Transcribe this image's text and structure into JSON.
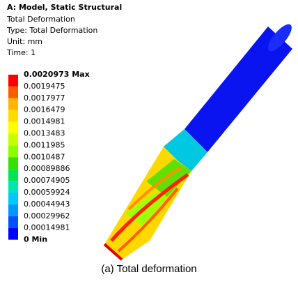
{
  "header": {
    "title": "A: Model, Static Structural",
    "lines": [
      "Total Deformation",
      "Type: Total Deformation",
      "Unit: mm",
      "Time: 1"
    ]
  },
  "legend": {
    "labels": [
      "0.0020973 Max",
      "0.0019475",
      "0.0017977",
      "0.0016479",
      "0.0014981",
      "0.0013483",
      "0.0011985",
      "0.0010487",
      "0.00089886",
      "0.00074905",
      "0.00059924",
      "0.00044943",
      "0.00029962",
      "0.00014981",
      "0 Min"
    ],
    "colors": [
      "#ff0000",
      "#ff5a00",
      "#ffb400",
      "#ffdc00",
      "#ffff00",
      "#c8ff00",
      "#8cff00",
      "#38e000",
      "#00e650",
      "#00e6b4",
      "#00c8ff",
      "#0096ff",
      "#0050ff",
      "#0000ff"
    ]
  },
  "caption": "(a) Total deformation"
}
